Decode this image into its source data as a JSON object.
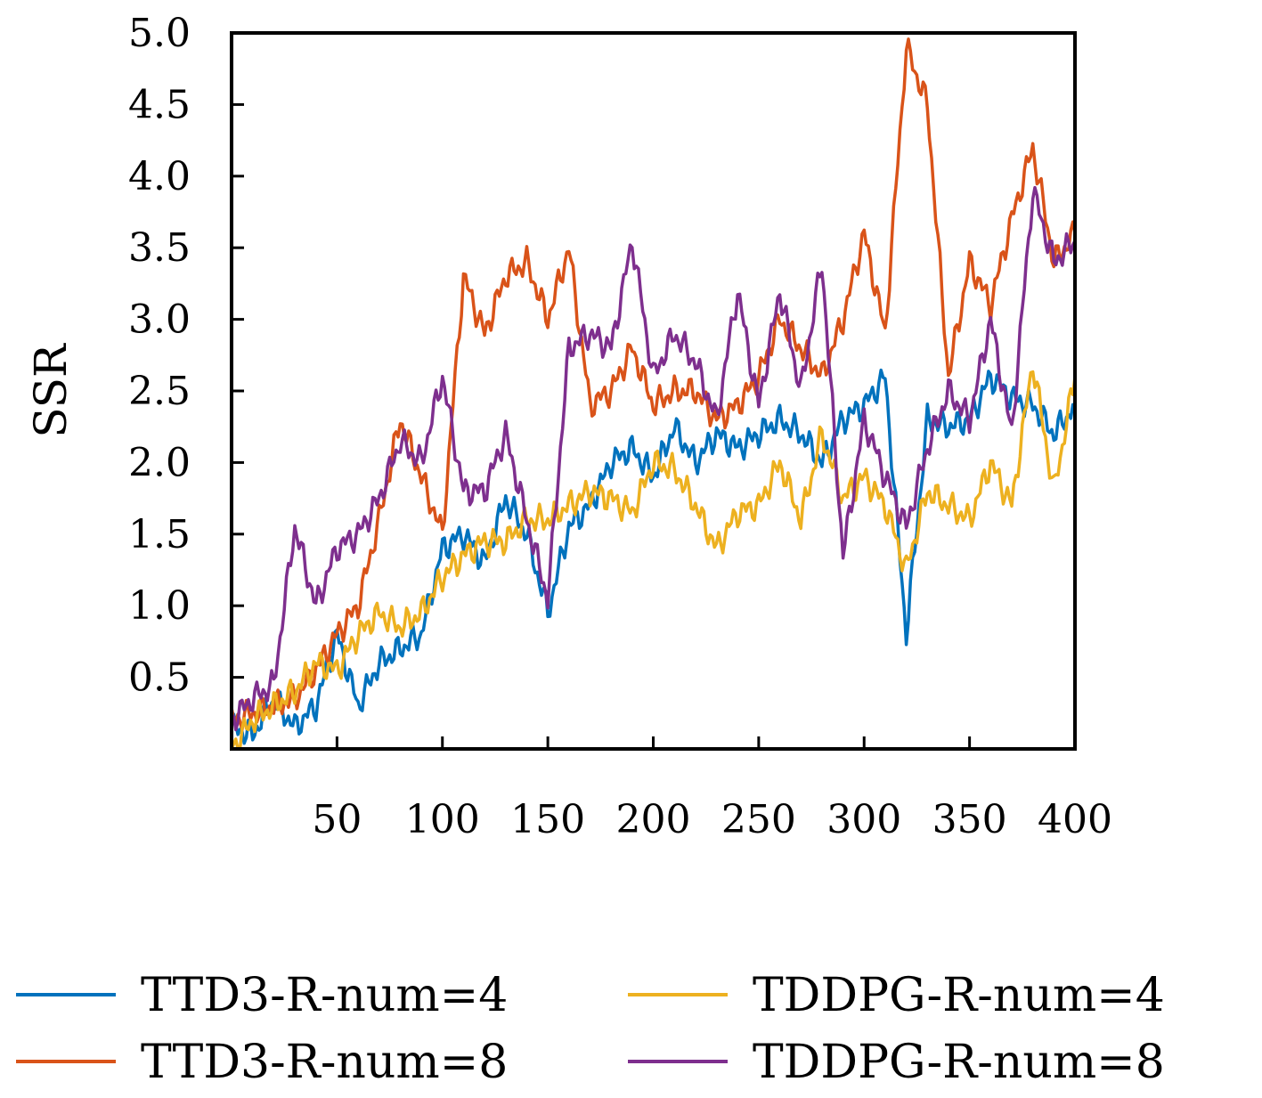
{
  "chart_data": {
    "type": "line",
    "title": "",
    "xlabel": "",
    "ylabel": "SSR",
    "xlim": [
      0,
      400
    ],
    "ylim": [
      0,
      5.0
    ],
    "xticks": [
      50,
      100,
      150,
      200,
      250,
      300,
      350,
      400
    ],
    "xtick_labels": [
      "50",
      "100",
      "150",
      "200",
      "250",
      "300",
      "350",
      "400"
    ],
    "yticks": [
      0.5,
      1.0,
      1.5,
      2.0,
      2.5,
      3.0,
      3.5,
      4.0,
      4.5,
      5.0
    ],
    "ytick_labels": [
      "0.5",
      "1.0",
      "1.5",
      "2.0",
      "2.5",
      "3.0",
      "3.5",
      "4.0",
      "4.5",
      "5.0"
    ],
    "grid": false,
    "legend_position": "bottom",
    "x": [
      0,
      10,
      20,
      30,
      40,
      50,
      60,
      70,
      80,
      90,
      100,
      110,
      120,
      130,
      140,
      150,
      160,
      170,
      180,
      190,
      200,
      210,
      220,
      230,
      240,
      250,
      260,
      270,
      280,
      290,
      300,
      310,
      320,
      330,
      340,
      350,
      360,
      370,
      380,
      390,
      400
    ],
    "series": [
      {
        "name": "TTD3-R-num=4",
        "color": "#0072BD",
        "values": [
          0.15,
          0.1,
          0.35,
          0.15,
          0.3,
          0.8,
          0.3,
          0.6,
          0.7,
          0.8,
          1.4,
          1.5,
          1.3,
          1.75,
          1.5,
          0.95,
          1.55,
          1.7,
          2.0,
          2.1,
          1.9,
          2.25,
          2.0,
          2.2,
          2.1,
          2.2,
          2.3,
          2.2,
          2.0,
          2.3,
          2.4,
          2.6,
          0.8,
          2.3,
          2.25,
          2.3,
          2.6,
          2.45,
          2.4,
          2.2,
          2.4
        ]
      },
      {
        "name": "TTD3-R-num=8",
        "color": "#D95319",
        "values": [
          0.2,
          0.25,
          0.3,
          0.35,
          0.55,
          0.8,
          1.0,
          1.6,
          2.3,
          1.9,
          1.5,
          3.3,
          2.9,
          3.3,
          3.4,
          3.0,
          3.5,
          2.4,
          2.5,
          2.8,
          2.4,
          2.5,
          2.5,
          2.3,
          2.4,
          2.6,
          3.0,
          2.8,
          2.6,
          3.0,
          3.6,
          2.9,
          4.9,
          4.5,
          2.6,
          3.4,
          3.1,
          3.7,
          4.2,
          3.4,
          3.6
        ]
      },
      {
        "name": "TDDPG-R-num=4",
        "color": "#EDB120",
        "values": [
          0.0,
          0.2,
          0.3,
          0.4,
          0.6,
          0.55,
          0.8,
          0.95,
          0.85,
          0.95,
          1.2,
          1.35,
          1.45,
          1.45,
          1.6,
          1.6,
          1.7,
          1.8,
          1.75,
          1.65,
          2.0,
          1.95,
          1.7,
          1.4,
          1.65,
          1.7,
          2.0,
          1.6,
          2.2,
          1.75,
          1.9,
          1.7,
          1.25,
          1.8,
          1.7,
          1.6,
          2.0,
          1.7,
          2.7,
          1.8,
          2.6
        ]
      },
      {
        "name": "TDDPG-R-num=8",
        "color": "#7E2F8E",
        "values": [
          0.2,
          0.35,
          0.45,
          1.55,
          1.0,
          1.4,
          1.5,
          1.75,
          2.15,
          2.0,
          2.6,
          1.8,
          1.8,
          2.2,
          1.6,
          1.05,
          2.8,
          2.9,
          2.8,
          3.55,
          2.6,
          2.9,
          2.7,
          2.3,
          3.2,
          2.4,
          3.2,
          2.5,
          3.4,
          1.35,
          2.3,
          1.9,
          1.55,
          2.1,
          2.5,
          2.3,
          3.0,
          2.2,
          3.9,
          3.4,
          3.55
        ]
      }
    ]
  }
}
